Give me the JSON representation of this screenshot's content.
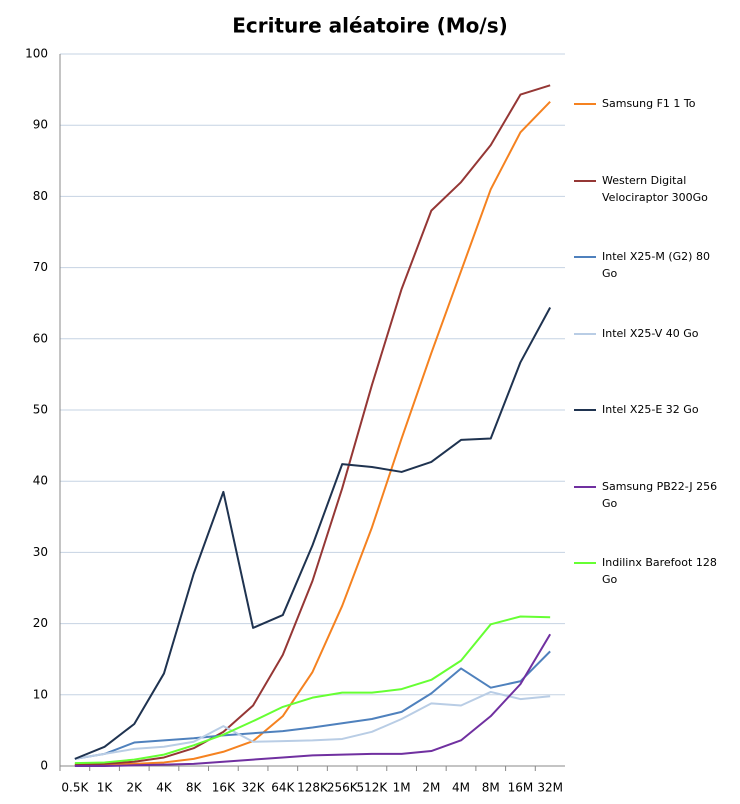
{
  "chart_data": {
    "type": "line",
    "title": "Ecriture aléatoire (Mo/s)",
    "categories": [
      "0.5K",
      "1K",
      "2K",
      "4K",
      "8K",
      "16K",
      "32K",
      "64K",
      "128K",
      "256K",
      "512K",
      "1M",
      "2M",
      "4M",
      "8M",
      "16M",
      "32M"
    ],
    "ylim": [
      0,
      100
    ],
    "yticks": [
      0,
      10,
      20,
      30,
      40,
      50,
      60,
      70,
      80,
      90,
      100
    ],
    "grid": true,
    "legend": "right",
    "series": [
      {
        "name": "Samsung F1 1 To",
        "color": "#f58220",
        "values": [
          0.1,
          0.2,
          0.3,
          0.5,
          1,
          2,
          3.5,
          7,
          13.2,
          22.5,
          33.5,
          46,
          58,
          69.5,
          81,
          89,
          93.3
        ]
      },
      {
        "name": "Western Digital Velociraptor 300Go",
        "color": "#953735",
        "values": [
          0.2,
          0.3,
          0.6,
          1.2,
          2.5,
          4.8,
          8.5,
          15.6,
          26,
          39,
          53.5,
          67,
          78,
          82,
          87.2,
          94.3,
          95.6
        ]
      },
      {
        "name": "Intel X25-M (G2) 80 Go",
        "color": "#4f81bd",
        "values": [
          1,
          1.7,
          3.3,
          3.6,
          3.9,
          4.3,
          4.6,
          4.9,
          5.4,
          6,
          6.6,
          7.6,
          10.2,
          13.7,
          11,
          11.9,
          16.1
        ]
      },
      {
        "name": "Intel X25-V 40 Go",
        "color": "#b9cde5",
        "values": [
          1,
          1.7,
          2.4,
          2.7,
          3.4,
          5.6,
          3.4,
          3.5,
          3.6,
          3.8,
          4.8,
          6.6,
          8.8,
          8.5,
          10.4,
          9.4,
          9.8
        ]
      },
      {
        "name": "Intel X25-E 32 Go",
        "color": "#1f3350",
        "values": [
          1,
          2.7,
          5.9,
          13,
          27,
          38.5,
          19.4,
          21.2,
          31,
          42.4,
          42,
          41.3,
          42.7,
          45.8,
          46,
          56.7,
          64.4
        ]
      },
      {
        "name": "Samsung PB22-J 256 Go",
        "color": "#7030a0",
        "values": [
          0,
          0,
          0.1,
          0.2,
          0.3,
          0.6,
          0.9,
          1.2,
          1.5,
          1.6,
          1.7,
          1.7,
          2.1,
          3.6,
          7,
          11.5,
          18.5
        ]
      },
      {
        "name": "Indilinx Barefoot 128 Go",
        "color": "#66ff33",
        "values": [
          0.4,
          0.5,
          0.9,
          1.6,
          2.9,
          4.4,
          6.3,
          8.3,
          9.6,
          10.3,
          10.3,
          10.8,
          12.1,
          14.8,
          19.9,
          21,
          20.9
        ]
      }
    ]
  }
}
